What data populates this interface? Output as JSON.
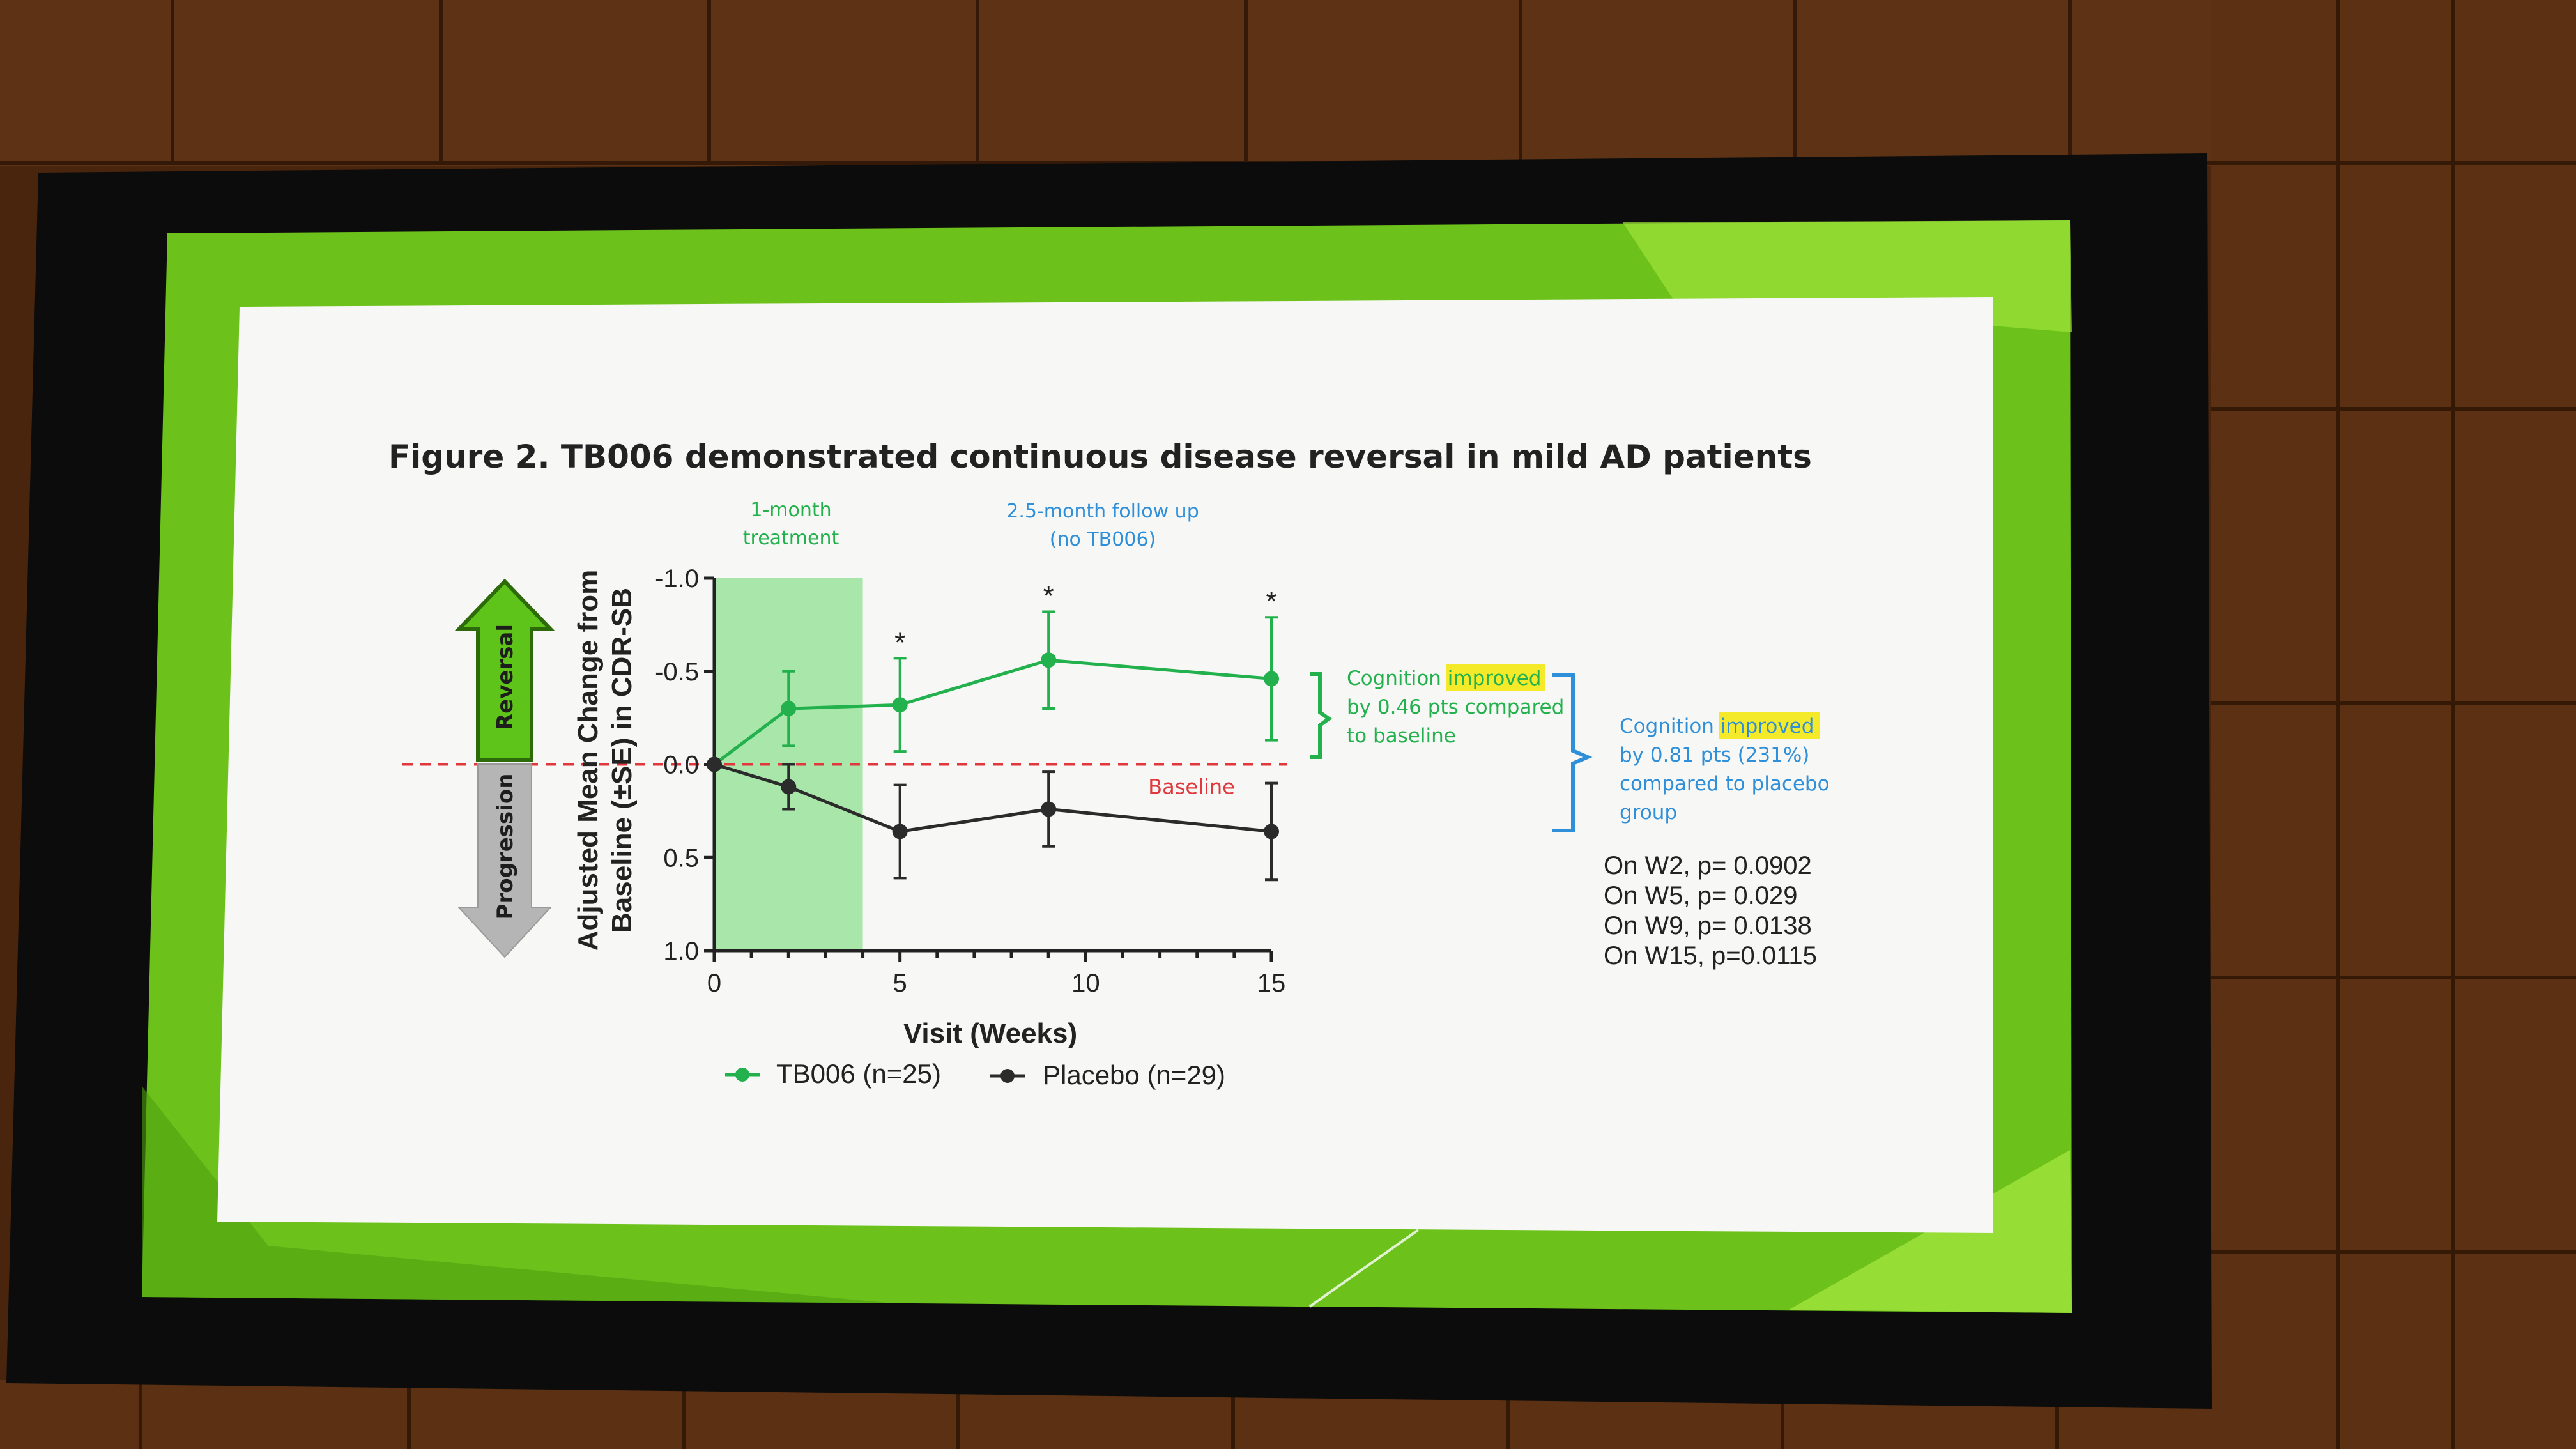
{
  "slide": {
    "title": "Figure 2. TB006 demonstrated continuous disease reversal in mild AD patients",
    "phase_treatment": [
      "1-month",
      "treatment"
    ],
    "phase_followup": [
      "2.5-month follow up",
      "(no TB006)"
    ],
    "arrow_up_label": "Reversal",
    "arrow_down_label": "Progression",
    "baseline_label": "Baseline",
    "annotation_baseline": {
      "prefix": "Cognition ",
      "highlight": "improved",
      "rest": [
        "by 0.46 pts compared",
        "to baseline"
      ]
    },
    "annotation_placebo": {
      "prefix": "Cognition ",
      "highlight": "improved",
      "rest": [
        "by 0.81 pts (231%)",
        "compared to placebo",
        "group"
      ]
    },
    "pvalues": [
      "On W2, p= 0.0902",
      "On W5, p= 0.029",
      "On W9, p= 0.0138",
      "On W15, p=0.0115"
    ],
    "significance_mark": "*"
  },
  "colors": {
    "treatment_green": "#22b14c",
    "treatment_band": "#9be39b",
    "placebo": "#2b2b2b",
    "baseline_red": "#e0383c",
    "annotation_blue": "#2f8fd8",
    "highlight_yellow": "#f4ea2a",
    "slide_green": "#6cc21b"
  },
  "chart_data": {
    "type": "line",
    "title": "",
    "xlabel": "Visit (Weeks)",
    "ylabel": [
      "Adjusted Mean Change from",
      "Baseline (±SE) in CDR-SB"
    ],
    "xlim": [
      0,
      15
    ],
    "ylim": [
      1.0,
      -1.0
    ],
    "y_inverted": true,
    "x_ticks": [
      0,
      5,
      10,
      15
    ],
    "y_ticks": [
      -1.0,
      -0.5,
      0.0,
      0.5,
      1.0
    ],
    "y_tick_labels": [
      "-1.0",
      "-0.5",
      "0.0",
      "0.5",
      "1.0"
    ],
    "shaded_x_range": [
      0,
      4
    ],
    "baseline_y": 0.0,
    "significant_x": [
      5,
      9,
      15
    ],
    "legend_position": "bottom",
    "series": [
      {
        "name": "TB006 (n=25)",
        "color": "#22b14c",
        "x": [
          0,
          2,
          5,
          9,
          15
        ],
        "y": [
          0.0,
          -0.3,
          -0.32,
          -0.56,
          -0.46
        ],
        "se": [
          0.0,
          0.2,
          0.25,
          0.26,
          0.33
        ]
      },
      {
        "name": "Placebo (n=29)",
        "color": "#2b2b2b",
        "x": [
          0,
          2,
          5,
          9,
          15
        ],
        "y": [
          0.0,
          0.12,
          0.36,
          0.24,
          0.36
        ],
        "se": [
          0.0,
          0.12,
          0.25,
          0.2,
          0.26
        ]
      }
    ]
  }
}
